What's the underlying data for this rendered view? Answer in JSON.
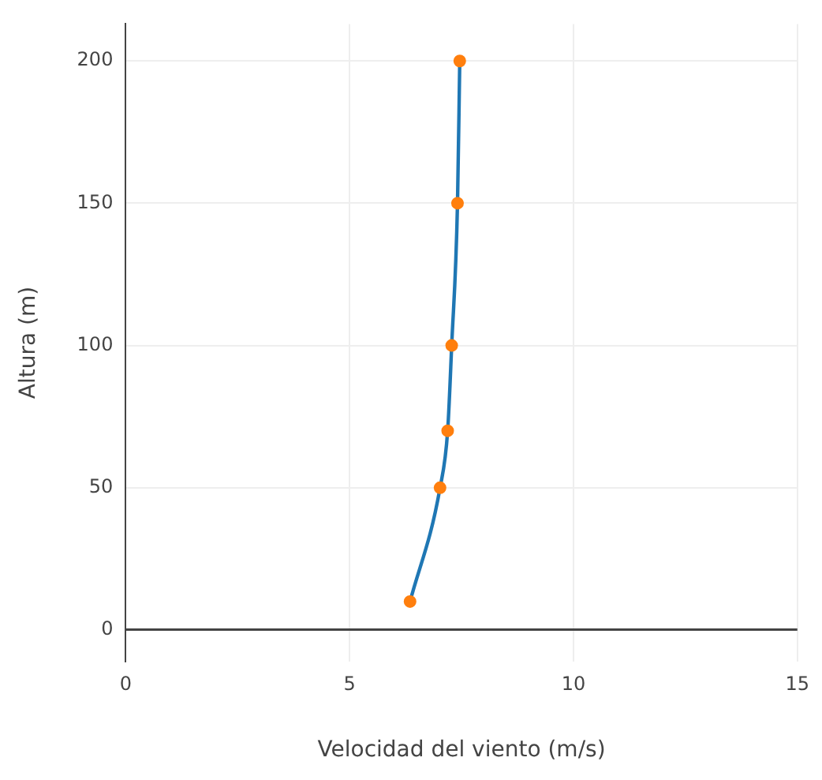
{
  "chart_data": {
    "type": "line",
    "xlabel": "Velocidad del viento (m/s)",
    "ylabel": "Altura (m)",
    "series": [
      {
        "color": "#1f77b4",
        "marker": "none",
        "x": [
          6.35,
          7.02,
          7.19,
          7.28,
          7.41,
          7.46
        ],
        "values": [
          10,
          50,
          70,
          100,
          150,
          200
        ]
      },
      {
        "type": "scatter",
        "color": "#ff7f0e",
        "marker": "circle",
        "x": [
          6.35,
          7.02,
          7.19,
          7.28,
          7.41,
          7.46
        ],
        "values": [
          10,
          50,
          70,
          100,
          150,
          200
        ]
      }
    ],
    "xlim": [
      0,
      15
    ],
    "xticks": [
      0,
      5,
      10,
      15
    ],
    "ylim": [
      -11,
      213
    ],
    "yticks": [
      0,
      50,
      100,
      150,
      200
    ],
    "grid": true,
    "legend": false
  }
}
